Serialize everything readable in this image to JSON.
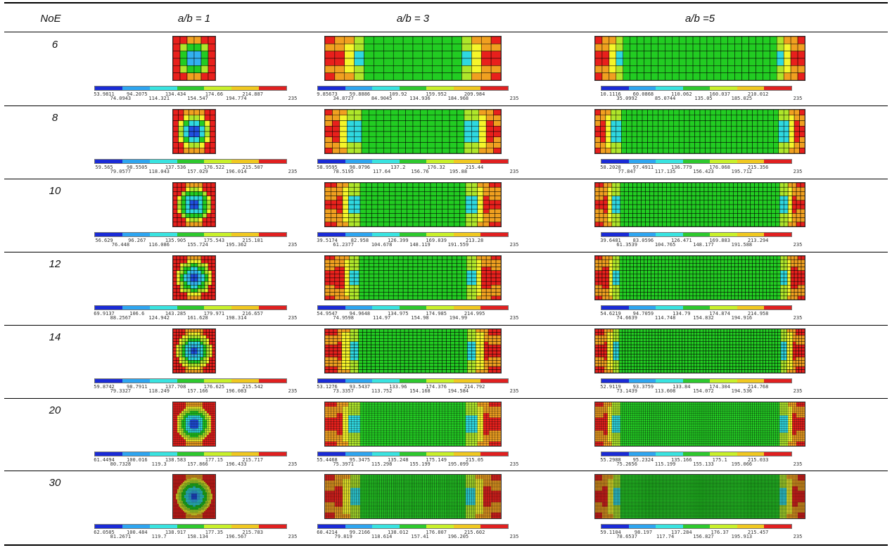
{
  "header": {
    "noe": "NoE",
    "col1": "a/b = 1",
    "col2": "a/b = 3",
    "col3": "a/b =5"
  },
  "legend_colors": [
    "#1a2bd6",
    "#2ea5f0",
    "#39e3e0",
    "#2ec82e",
    "#c8f02a",
    "#f0c820",
    "#e02020"
  ],
  "plot_colors": {
    "red": "#e8201c",
    "orange": "#f0a020",
    "yellow": "#f5f52a",
    "lime": "#aee62a",
    "green": "#22cc22",
    "cyan": "#2fd8e0",
    "lightblue": "#32b0f0",
    "blue": "#2050e0"
  },
  "rows": [
    {
      "noe": "6",
      "n": 6,
      "legends": [
        {
          "bottom": [
            "53.9811",
            "94.2075",
            "134.434",
            "174.66",
            "214.887"
          ],
          "top": [
            "74.0943",
            "114.321",
            "154.547",
            "194.774",
            "235"
          ]
        },
        {
          "bottom": [
            "9.85673",
            "59.8886",
            "109.92",
            "159.952",
            "209.984"
          ],
          "top": [
            "34.8727",
            "84.9045",
            "134.936",
            "184.968",
            "235"
          ]
        },
        {
          "bottom": [
            "10.1116",
            "60.0868",
            "110.062",
            "160.037",
            "210.012"
          ],
          "top": [
            "35.0992",
            "85.0744",
            "135.05",
            "185.025",
            "235"
          ]
        }
      ]
    },
    {
      "noe": "8",
      "n": 8,
      "legends": [
        {
          "bottom": [
            "59.565",
            "98.5505",
            "137.536",
            "176.522",
            "215.507"
          ],
          "top": [
            "79.0577",
            "118.043",
            "157.029",
            "196.014",
            "235"
          ]
        },
        {
          "bottom": [
            "58.9595",
            "98.0796",
            "137.2",
            "176.32",
            "215.44"
          ],
          "top": [
            "78.5195",
            "117.64",
            "156.76",
            "195.88",
            "235"
          ]
        },
        {
          "bottom": [
            "58.2028",
            "97.4911",
            "136.779",
            "176.068",
            "215.356"
          ],
          "top": [
            "77.847",
            "117.135",
            "156.423",
            "195.712",
            "235"
          ]
        }
      ]
    },
    {
      "noe": "10",
      "n": 10,
      "legends": [
        {
          "bottom": [
            "56.629",
            "96.267",
            "135.905",
            "175.543",
            "215.181"
          ],
          "top": [
            "76.448",
            "116.086",
            "155.724",
            "195.362",
            "235"
          ]
        },
        {
          "bottom": [
            "39.5174",
            "82.958",
            "126.399",
            "169.839",
            "213.28"
          ],
          "top": [
            "61.2377",
            "104.678",
            "148.119",
            "191.559",
            "235"
          ]
        },
        {
          "bottom": [
            "39.6481",
            "83.0596",
            "126.471",
            "169.883",
            "213.294"
          ],
          "top": [
            "61.3539",
            "104.765",
            "148.177",
            "191.588",
            "235"
          ]
        }
      ]
    },
    {
      "noe": "12",
      "n": 12,
      "legends": [
        {
          "bottom": [
            "69.9137",
            "106.6",
            "143.285",
            "179.971",
            "216.657"
          ],
          "top": [
            "88.2567",
            "124.942",
            "161.628",
            "198.314",
            "235"
          ]
        },
        {
          "bottom": [
            "54.9547",
            "94.9648",
            "134.975",
            "174.985",
            "214.995"
          ],
          "top": [
            "74.9598",
            "114.97",
            "154.98",
            "194.99",
            "235"
          ]
        },
        {
          "bottom": [
            "54.6219",
            "94.7059",
            "134.79",
            "174.874",
            "214.958"
          ],
          "top": [
            "74.6639",
            "114.748",
            "154.832",
            "194.916",
            "235"
          ]
        }
      ]
    },
    {
      "noe": "14",
      "n": 14,
      "legends": [
        {
          "bottom": [
            "59.8742",
            "98.7911",
            "137.708",
            "176.625",
            "215.542"
          ],
          "top": [
            "79.3327",
            "118.249",
            "157.166",
            "196.083",
            "235"
          ]
        },
        {
          "bottom": [
            "53.1276",
            "93.5437",
            "133.96",
            "174.376",
            "214.792"
          ],
          "top": [
            "73.3357",
            "113.752",
            "154.168",
            "194.584",
            "235"
          ]
        },
        {
          "bottom": [
            "52.9119",
            "93.3759",
            "133.84",
            "174.304",
            "214.768"
          ],
          "top": [
            "73.1439",
            "113.608",
            "154.072",
            "194.536",
            "235"
          ]
        }
      ]
    },
    {
      "noe": "20",
      "n": 20,
      "legends": [
        {
          "bottom": [
            "61.4494",
            "100.016",
            "138.583",
            "177.15",
            "215.717"
          ],
          "top": [
            "80.7328",
            "119.3",
            "157.866",
            "196.433",
            "235"
          ]
        },
        {
          "bottom": [
            "55.4468",
            "95.3475",
            "135.248",
            "175.149",
            "215.05"
          ],
          "top": [
            "75.3971",
            "115.298",
            "155.199",
            "195.099",
            "235"
          ]
        },
        {
          "bottom": [
            "55.2988",
            "95.2324",
            "135.166",
            "175.1",
            "215.033"
          ],
          "top": [
            "75.2656",
            "115.199",
            "155.133",
            "195.066",
            "235"
          ]
        }
      ]
    },
    {
      "noe": "30",
      "n": 30,
      "legends": [
        {
          "bottom": [
            "62.0505",
            "100.484",
            "138.917",
            "177.35",
            "215.783"
          ],
          "top": [
            "81.2671",
            "119.7",
            "158.134",
            "196.567",
            "235"
          ]
        },
        {
          "bottom": [
            "60.4214",
            "99.2166",
            "138.012",
            "176.807",
            "215.602"
          ],
          "top": [
            "79.819",
            "118.614",
            "157.41",
            "196.205",
            "235"
          ]
        },
        {
          "bottom": [
            "59.1104",
            "98.197",
            "137.284",
            "176.37",
            "215.457"
          ],
          "top": [
            "78.6537",
            "117.74",
            "156.827",
            "195.913",
            "235"
          ]
        }
      ]
    }
  ]
}
